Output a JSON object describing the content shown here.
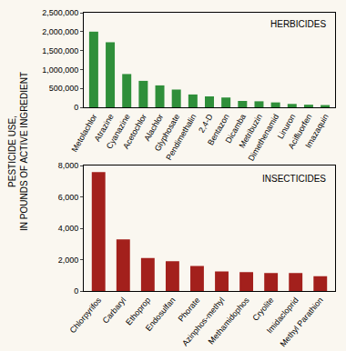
{
  "y_label": "PESTICIDE USE,\nIN POUNDS OF ACTIVE INGREDIENT",
  "chart_data": [
    {
      "type": "bar",
      "title": "HERBICIDES",
      "categories": [
        "Metolachlor",
        "Atrazine",
        "Cyanazine",
        "Acetochlor",
        "Alachlor",
        "Glyphosate",
        "Pendimethalin",
        "2,4-D",
        "Bentazon",
        "Dicamba",
        "Metribuzin",
        "Dimethenamid",
        "Linuron",
        "Acifluorfen",
        "Imazaquin"
      ],
      "values": [
        2000000,
        1720000,
        880000,
        700000,
        580000,
        470000,
        340000,
        290000,
        260000,
        170000,
        160000,
        130000,
        90000,
        70000,
        60000
      ],
      "color": "#2f8f3a",
      "ylim": [
        0,
        2500000
      ],
      "yticks": [
        0,
        {
          "value": 500000,
          "label": "500,000"
        },
        {
          "value": 1000000,
          "label": "1,000,000"
        },
        {
          "value": 1500000,
          "label": "1,500,000"
        },
        {
          "value": 2000000,
          "label": "2,000,000"
        },
        {
          "value": 2500000,
          "label": "2,500,000"
        }
      ],
      "grid": false
    },
    {
      "type": "bar",
      "title": "INSECTICIDES",
      "categories": [
        "Chlorpyrifos",
        "Carbaryl",
        "Ethoprop",
        "Endosulfan",
        "Phorate",
        "Azinphos-methyl",
        "Methamidophos",
        "Cryolite",
        "Imidacloprid",
        "Methyl Parathion"
      ],
      "values": [
        7600,
        3300,
        2100,
        1900,
        1600,
        1250,
        1200,
        1150,
        1150,
        950
      ],
      "color": "#a3201c",
      "ylim": [
        0,
        8000
      ],
      "yticks": [
        0,
        {
          "value": 2000,
          "label": "2,000"
        },
        {
          "value": 4000,
          "label": "4,000"
        },
        {
          "value": 6000,
          "label": "6,000"
        },
        {
          "value": 8000,
          "label": "8,000"
        }
      ],
      "grid": false
    }
  ]
}
